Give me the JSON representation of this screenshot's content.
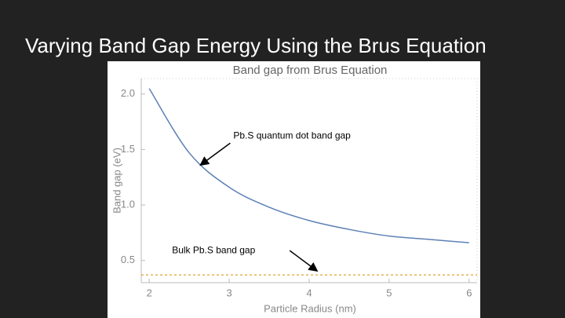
{
  "slide_title": "Varying Band Gap Energy Using the Brus Equation",
  "chart_data": {
    "type": "line",
    "title": "Band gap from Brus Equation",
    "x_label": "Particle Radius (nm)",
    "y_label": "Band gap (eV)",
    "x": [
      2,
      2.5,
      3,
      3.5,
      4,
      4.5,
      5,
      5.5,
      6
    ],
    "values": [
      2.05,
      1.47,
      1.16,
      0.98,
      0.86,
      0.78,
      0.72,
      0.69,
      0.66
    ],
    "color": "#5e81b5",
    "reference_line": {
      "value": 0.37,
      "color": "#e0a030"
    },
    "xlim": [
      1.9,
      6.1
    ],
    "ylim": [
      0.3,
      2.14
    ],
    "xticks": [
      2,
      3,
      4,
      5,
      6
    ],
    "yticks": [
      {
        "value": 0.5,
        "label": "0.5"
      },
      {
        "value": 1,
        "label": "1.0"
      },
      {
        "value": 1.5,
        "label": "1.5"
      },
      {
        "value": 2,
        "label": "2.0"
      }
    ],
    "annotations": [
      {
        "text": "Pb.S quantum dot band gap",
        "x": 2.64,
        "y": 1.36
      },
      {
        "text": "Bulk Pb.S band gap",
        "x": 4.1,
        "y": 0.37
      }
    ]
  }
}
